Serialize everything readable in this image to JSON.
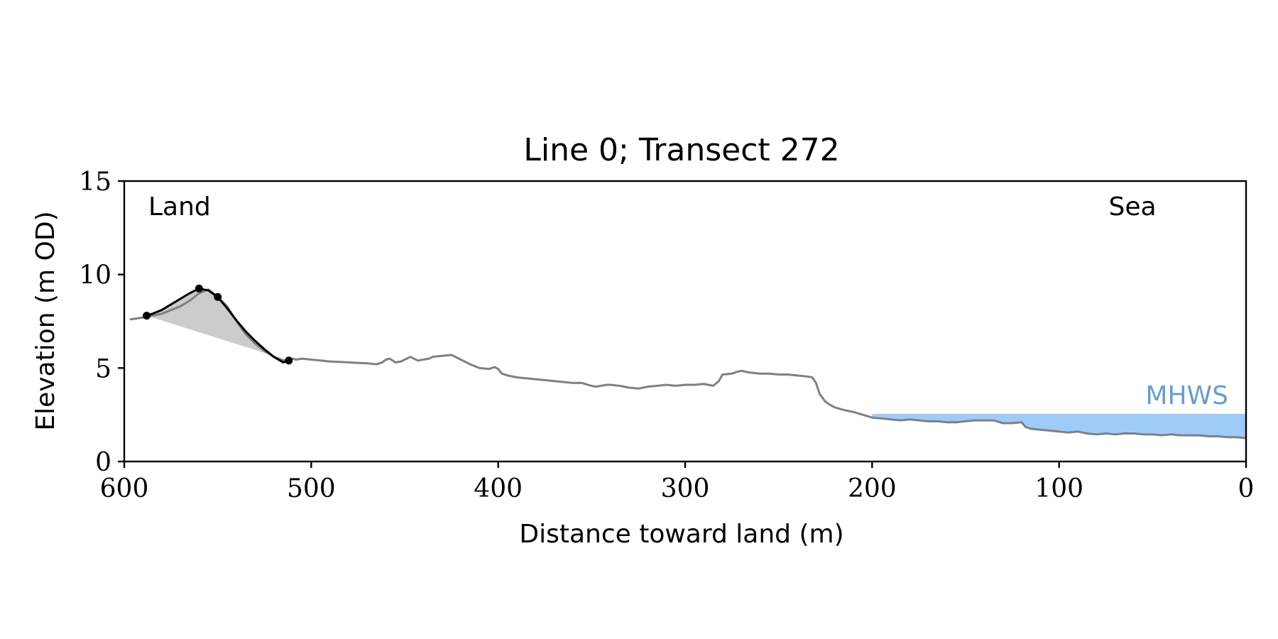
{
  "chart_data": {
    "type": "line",
    "title": "Line 0; Transect 272",
    "xlabel": "Distance toward land (m)",
    "ylabel": "Elevation (m OD)",
    "xlim": [
      600,
      0
    ],
    "ylim": [
      0,
      15
    ],
    "x_ticks": [
      600,
      500,
      400,
      300,
      200,
      100,
      0
    ],
    "y_ticks": [
      0,
      5,
      10,
      15
    ],
    "grid": false,
    "colors": {
      "profile": "#808080",
      "dune": "#000000",
      "dune_fill": "#cccccc",
      "mhws_fill": "#9fcbf9",
      "mhws_label": "#6a9cc8"
    },
    "annotations": {
      "land": "Land",
      "sea": "Sea",
      "mhws": "MHWS"
    },
    "profile": {
      "x": [
        597,
        590,
        585,
        580,
        575,
        570,
        565,
        560,
        555,
        550,
        545,
        540,
        535,
        530,
        525,
        520,
        515,
        512,
        510,
        508,
        505,
        500,
        495,
        490,
        480,
        470,
        465,
        462,
        460,
        458,
        455,
        452,
        450,
        447,
        445,
        443,
        440,
        437,
        435,
        430,
        425,
        420,
        415,
        410,
        405,
        402,
        400,
        398,
        395,
        390,
        380,
        370,
        360,
        355,
        352,
        348,
        345,
        342,
        340,
        335,
        330,
        325,
        320,
        315,
        310,
        305,
        300,
        295,
        290,
        285,
        282,
        280,
        275,
        272,
        270,
        265,
        260,
        255,
        250,
        245,
        240,
        235,
        232,
        230,
        228,
        225,
        222,
        220,
        215,
        210,
        205,
        200,
        195,
        190,
        185,
        180,
        175,
        170,
        165,
        160,
        155,
        150,
        145,
        140,
        135,
        130,
        125,
        120,
        118,
        115,
        110,
        105,
        100,
        95,
        90,
        85,
        80,
        75,
        70,
        65,
        60,
        55,
        50,
        45,
        40,
        35,
        30,
        25,
        20,
        15,
        10,
        5,
        0
      ],
      "y": [
        7.6,
        7.7,
        7.8,
        7.9,
        8.1,
        8.3,
        8.6,
        9.0,
        9.2,
        8.8,
        8.3,
        7.5,
        6.8,
        6.3,
        5.9,
        5.6,
        5.4,
        5.4,
        5.5,
        5.45,
        5.5,
        5.45,
        5.4,
        5.35,
        5.3,
        5.25,
        5.2,
        5.3,
        5.45,
        5.5,
        5.3,
        5.35,
        5.45,
        5.6,
        5.5,
        5.4,
        5.45,
        5.5,
        5.6,
        5.65,
        5.7,
        5.45,
        5.2,
        5.0,
        4.95,
        5.05,
        4.95,
        4.7,
        4.6,
        4.5,
        4.4,
        4.3,
        4.2,
        4.2,
        4.1,
        4.0,
        4.05,
        4.1,
        4.1,
        4.05,
        3.95,
        3.9,
        4.0,
        4.05,
        4.1,
        4.05,
        4.1,
        4.1,
        4.15,
        4.05,
        4.3,
        4.65,
        4.7,
        4.8,
        4.85,
        4.75,
        4.7,
        4.7,
        4.65,
        4.65,
        4.6,
        4.55,
        4.5,
        4.2,
        3.6,
        3.2,
        3.0,
        2.9,
        2.75,
        2.65,
        2.5,
        2.35,
        2.3,
        2.25,
        2.2,
        2.25,
        2.2,
        2.15,
        2.15,
        2.1,
        2.1,
        2.15,
        2.2,
        2.2,
        2.2,
        2.05,
        2.05,
        2.1,
        1.85,
        1.75,
        1.7,
        1.65,
        1.6,
        1.55,
        1.6,
        1.5,
        1.45,
        1.5,
        1.45,
        1.5,
        1.5,
        1.45,
        1.45,
        1.4,
        1.45,
        1.4,
        1.4,
        1.4,
        1.35,
        1.35,
        1.3,
        1.3,
        1.25
      ]
    },
    "dune": {
      "x": [
        588,
        585,
        580,
        575,
        570,
        565,
        560,
        555,
        550,
        545,
        540,
        535,
        530,
        525,
        520,
        515,
        512
      ],
      "y": [
        7.8,
        7.9,
        8.1,
        8.4,
        8.7,
        9.0,
        9.25,
        9.15,
        8.8,
        8.2,
        7.55,
        6.95,
        6.45,
        6.0,
        5.6,
        5.3,
        5.4
      ]
    },
    "dune_points": [
      {
        "x": 588,
        "y": 7.8
      },
      {
        "x": 560,
        "y": 9.25
      },
      {
        "x": 550,
        "y": 8.8
      },
      {
        "x": 512,
        "y": 5.4
      }
    ],
    "mhws": {
      "level": 2.55,
      "x_start": 200,
      "x_end": 0
    }
  }
}
